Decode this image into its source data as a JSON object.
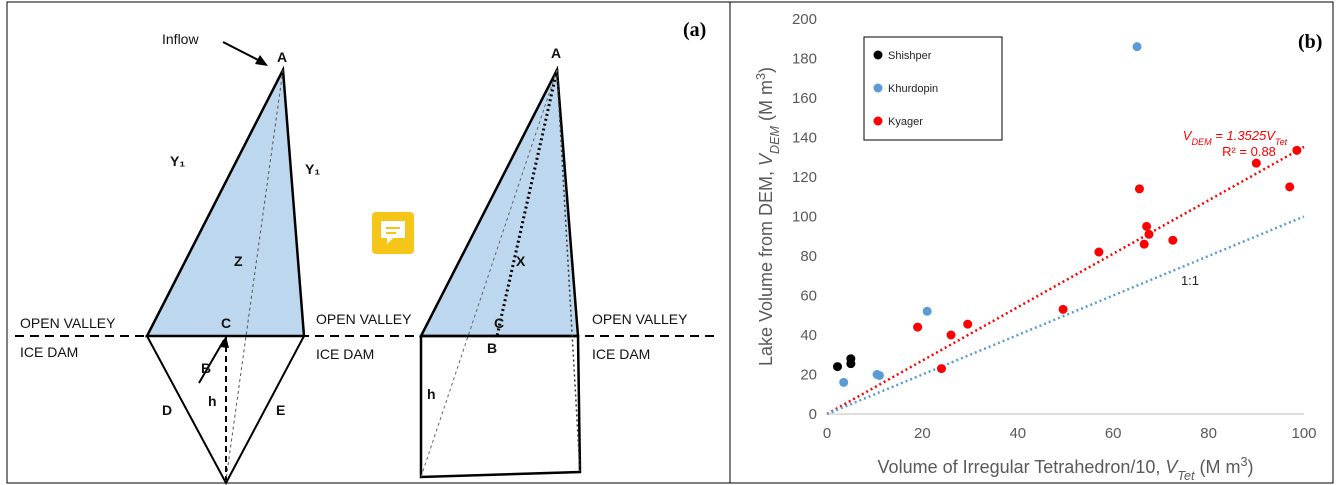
{
  "diagram": {
    "panel_label": "(a)",
    "inflow": "Inflow",
    "left": {
      "A": "A",
      "Y1_left": "Y₁",
      "Y1_right": "Y₁",
      "Z": "Z",
      "C": "C",
      "B": "B",
      "D": "D",
      "h": "h",
      "E": "E"
    },
    "right": {
      "A": "A",
      "X": "X",
      "C": "C",
      "B": "B",
      "h": "h"
    },
    "zones": [
      {
        "open": "OPEN VALLEY",
        "dam": "ICE DAM"
      },
      {
        "open": "OPEN VALLEY",
        "dam": "ICE DAM"
      },
      {
        "open": "OPEN VALLEY",
        "dam": "ICE DAM"
      }
    ]
  },
  "chart_data": {
    "type": "scatter",
    "panel_label": "(b)",
    "x_label": [
      "Volume of Irregular Tetrahedron/10, ",
      "V",
      "Tet",
      " (M m",
      "3",
      ")"
    ],
    "y_label": [
      "Lake Volume from DEM, ",
      "V",
      "DEM",
      " (M m",
      "3",
      ")"
    ],
    "xlim": [
      0,
      100
    ],
    "xticks": [
      0,
      20,
      40,
      60,
      80,
      100
    ],
    "ylim": [
      0,
      200
    ],
    "yticks": [
      0,
      20,
      40,
      60,
      80,
      100,
      120,
      140,
      160,
      180,
      200
    ],
    "grid": false,
    "legend": "upper left",
    "series": [
      {
        "name": "Shishper",
        "color": "#000000",
        "x": [
          2.2,
          5,
          5
        ],
        "values": [
          24,
          28,
          25.5
        ]
      },
      {
        "name": "Khurdopin",
        "color": "#5b9bd5",
        "x": [
          3.5,
          10.5,
          11,
          21,
          65
        ],
        "values": [
          16,
          20,
          19.5,
          52,
          186
        ]
      },
      {
        "name": "Kyager",
        "color": "#ff0000",
        "x": [
          19,
          24,
          26,
          29.5,
          49.5,
          57,
          65.5,
          66.5,
          67,
          67.5,
          72.5,
          90,
          97,
          98.5
        ],
        "values": [
          44,
          23,
          40,
          45.5,
          53,
          82,
          114,
          86,
          95,
          91,
          88,
          127,
          115,
          133.5
        ]
      }
    ],
    "fit_lines": [
      {
        "slope": 1.3525,
        "color": "#ff0000",
        "label": [
          "V",
          "DEM",
          " = 1.3525V",
          "Tet"
        ],
        "r2_label": "R² = 0.88"
      },
      {
        "slope": 1,
        "color": "#5b9bd5",
        "label": [
          "1:1"
        ]
      }
    ]
  }
}
